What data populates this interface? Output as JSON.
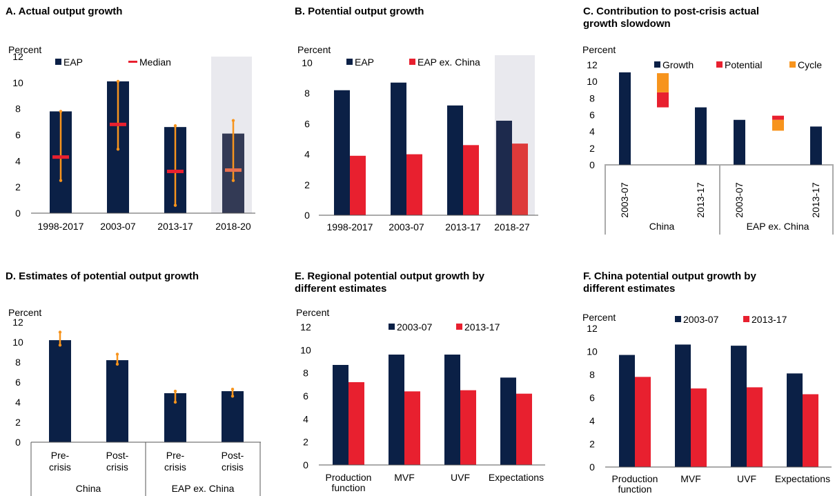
{
  "colors": {
    "navy": "#0b2046",
    "red": "#e8202f",
    "orange": "#f7941d",
    "shade": "#e9e9ee",
    "axis": "#555555"
  },
  "chart_data": [
    {
      "id": "A",
      "type": "bar",
      "title": [
        "A. Actual output growth"
      ],
      "ylabel": "Percent",
      "ylim": [
        0,
        12
      ],
      "yticks": [
        0,
        2,
        4,
        6,
        8,
        10,
        12
      ],
      "categories": [
        "1998-2017",
        "2003-07",
        "2013-17",
        "2018-20"
      ],
      "shaded": [
        3
      ],
      "series": [
        {
          "name": "EAP",
          "values": [
            7.8,
            10.1,
            6.6,
            6.1
          ]
        }
      ],
      "median": {
        "name": "Median",
        "values": [
          4.3,
          6.8,
          3.2,
          3.3
        ]
      },
      "ranges": [
        [
          2.5,
          7.8
        ],
        [
          4.9,
          10.1
        ],
        [
          0.6,
          6.7
        ],
        [
          2.5,
          7.1
        ]
      ],
      "legend": [
        {
          "label": "EAP",
          "kind": "square",
          "color": "#0b2046"
        },
        {
          "label": "Median",
          "kind": "dash",
          "color": "#e8202f"
        }
      ]
    },
    {
      "id": "B",
      "type": "bar",
      "title": [
        "B. Potential output growth"
      ],
      "ylabel": "Percent",
      "ylim": [
        0,
        10
      ],
      "yticks": [
        0,
        2,
        4,
        6,
        8,
        10
      ],
      "categories": [
        "1998-2017",
        "2003-07",
        "2013-17",
        "2018-27"
      ],
      "shaded": [
        3
      ],
      "series": [
        {
          "name": "EAP",
          "values": [
            8.2,
            8.7,
            7.2,
            6.2
          ]
        },
        {
          "name": "EAP ex. China",
          "values": [
            3.9,
            4.0,
            4.6,
            4.7
          ]
        }
      ],
      "legend": [
        {
          "label": "EAP",
          "kind": "square",
          "color": "#0b2046"
        },
        {
          "label": "EAP ex. China",
          "kind": "square",
          "color": "#e8202f"
        }
      ]
    },
    {
      "id": "C",
      "type": "bar",
      "title": [
        "C. Contribution to post-crisis actual",
        "growth slowdown"
      ],
      "ylabel": "Percent",
      "ylim": [
        0,
        12
      ],
      "yticks": [
        0,
        2,
        4,
        6,
        8,
        10,
        12
      ],
      "categories": [
        "2003-07",
        "",
        "2013-17",
        "2003-07",
        "",
        "2013-17"
      ],
      "groups": [
        "China",
        "EAP ex. China"
      ],
      "growth": [
        11.1,
        null,
        6.9,
        5.4,
        null,
        4.6
      ],
      "waterfall": [
        {
          "index": 1,
          "potential": [
            6.9,
            8.7
          ],
          "cycle": [
            8.7,
            11.0
          ]
        },
        {
          "index": 4,
          "potential": [
            5.4,
            5.9
          ],
          "cycle": [
            4.1,
            5.4
          ]
        }
      ],
      "legend": [
        {
          "label": "Growth",
          "kind": "square",
          "color": "#0b2046"
        },
        {
          "label": "Potential",
          "kind": "square",
          "color": "#e8202f"
        },
        {
          "label": "Cycle",
          "kind": "square",
          "color": "#f7941d"
        }
      ]
    },
    {
      "id": "D",
      "type": "bar",
      "title": [
        "D. Estimates of potential output growth"
      ],
      "ylabel": "Percent",
      "ylim": [
        0,
        12
      ],
      "yticks": [
        0,
        2,
        4,
        6,
        8,
        10,
        12
      ],
      "categories": [
        [
          "Pre-",
          "crisis"
        ],
        [
          "Post-",
          "crisis"
        ],
        [
          "Pre-",
          "crisis"
        ],
        [
          "Post-",
          "crisis"
        ]
      ],
      "groups": [
        "China",
        "EAP ex. China"
      ],
      "values": [
        10.2,
        8.2,
        4.9,
        5.1
      ],
      "ranges": [
        [
          9.7,
          11.0
        ],
        [
          7.8,
          8.8
        ],
        [
          4.0,
          5.1
        ],
        [
          4.6,
          5.3
        ]
      ]
    },
    {
      "id": "E",
      "type": "bar",
      "title": [
        "E. Regional potential output growth by",
        "different estimates"
      ],
      "ylabel": "Percent",
      "ylim": [
        0,
        12
      ],
      "yticks": [
        0,
        2,
        4,
        6,
        8,
        10,
        12
      ],
      "categories": [
        [
          "Production",
          "function"
        ],
        [
          "MVF"
        ],
        [
          "UVF"
        ],
        [
          "Expectations"
        ]
      ],
      "series": [
        {
          "name": "2003-07",
          "values": [
            8.7,
            9.6,
            9.6,
            7.6
          ]
        },
        {
          "name": "2013-17",
          "values": [
            7.2,
            6.4,
            6.5,
            6.2
          ]
        }
      ],
      "legend": [
        {
          "label": "2003-07",
          "kind": "square",
          "color": "#0b2046"
        },
        {
          "label": "2013-17",
          "kind": "square",
          "color": "#e8202f"
        }
      ]
    },
    {
      "id": "F",
      "type": "bar",
      "title": [
        "F. China potential output growth by",
        "different estimates"
      ],
      "ylabel": "Percent",
      "ylim": [
        0,
        12
      ],
      "yticks": [
        0,
        2,
        4,
        6,
        8,
        10,
        12
      ],
      "categories": [
        [
          "Production",
          "function"
        ],
        [
          "MVF"
        ],
        [
          "UVF"
        ],
        [
          "Expectations"
        ]
      ],
      "series": [
        {
          "name": "2003-07",
          "values": [
            9.7,
            10.6,
            10.5,
            8.1
          ]
        },
        {
          "name": "2013-17",
          "values": [
            7.8,
            6.8,
            6.9,
            6.3
          ]
        }
      ],
      "legend": [
        {
          "label": "2003-07",
          "kind": "square",
          "color": "#0b2046"
        },
        {
          "label": "2013-17",
          "kind": "square",
          "color": "#e8202f"
        }
      ]
    }
  ]
}
